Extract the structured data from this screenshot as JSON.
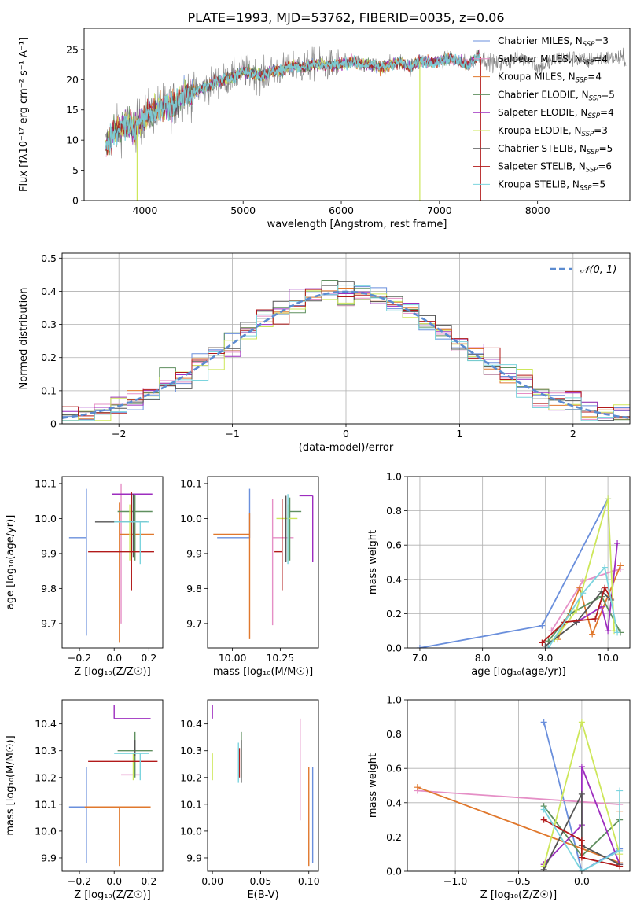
{
  "figure": {
    "title": "PLATE=1993, MJD=53762, FIBERID=0035, z=0.06"
  },
  "colors": {
    "grid": "#b0b0b0",
    "series": [
      "#6a8fdc",
      "#e58fc6",
      "#e0782d",
      "#5f8f5f",
      "#9d2dbf",
      "#cde75a",
      "#555555",
      "#b21a1a",
      "#7bd4de"
    ]
  },
  "chart_data": [
    {
      "id": "spectrum",
      "type": "line",
      "title": "PLATE=1993, MJD=53762, FIBERID=0035, z=0.06",
      "xlabel": "wavelength [Angstrom, rest frame]",
      "ylabel": "Flux [fλ10⁻¹⁷ erg cm⁻² s⁻¹ A⁻¹]",
      "xlim": [
        3380,
        8940
      ],
      "ylim": [
        0,
        28.5
      ],
      "xticks": [
        4000,
        5000,
        6000,
        7000,
        8000
      ],
      "yticks": [
        0,
        5,
        10,
        15,
        20,
        25
      ],
      "grid": false,
      "legend_position": "right",
      "legend": [
        {
          "label": "Chabrier MILES, N",
          "sub": "SSP",
          "suffix": "=3"
        },
        {
          "label": "Salpeter MILES, N",
          "sub": "SSP",
          "suffix": "=4"
        },
        {
          "label": "Kroupa MILES, N",
          "sub": "SSP",
          "suffix": "=4"
        },
        {
          "label": "Chabrier ELODIE, N",
          "sub": "SSP",
          "suffix": "=5"
        },
        {
          "label": "Salpeter ELODIE, N",
          "sub": "SSP",
          "suffix": "=4"
        },
        {
          "label": "Kroupa ELODIE, N",
          "sub": "SSP",
          "suffix": "=3"
        },
        {
          "label": "Chabrier STELIB, N",
          "sub": "SSP",
          "suffix": "=5"
        },
        {
          "label": "Salpeter STELIB, N",
          "sub": "SSP",
          "suffix": "=6"
        },
        {
          "label": "Kroupa STELIB, N",
          "sub": "SSP",
          "suffix": "=5"
        }
      ],
      "continuum": [
        [
          3600,
          9
        ],
        [
          3700,
          11.5
        ],
        [
          3800,
          12.5
        ],
        [
          3900,
          12
        ],
        [
          4000,
          14
        ],
        [
          4100,
          15
        ],
        [
          4200,
          15.5
        ],
        [
          4300,
          16
        ],
        [
          4400,
          17.5
        ],
        [
          4500,
          18
        ],
        [
          4600,
          18.5
        ],
        [
          4700,
          19.5
        ],
        [
          4800,
          20
        ],
        [
          4900,
          20.5
        ],
        [
          5000,
          21.5
        ],
        [
          5100,
          21
        ],
        [
          5200,
          20.5
        ],
        [
          5300,
          21.5
        ],
        [
          5400,
          21.5
        ],
        [
          5500,
          22.5
        ],
        [
          5600,
          22
        ],
        [
          5700,
          22.5
        ],
        [
          5800,
          22.5
        ],
        [
          5900,
          22.5
        ],
        [
          6000,
          22.5
        ],
        [
          6100,
          23
        ],
        [
          6200,
          22.5
        ],
        [
          6300,
          22.5
        ],
        [
          6400,
          22
        ],
        [
          6500,
          22.5
        ],
        [
          6600,
          23
        ],
        [
          6700,
          22
        ],
        [
          6800,
          23
        ],
        [
          6900,
          23
        ],
        [
          7000,
          23
        ],
        [
          7100,
          23.5
        ],
        [
          7200,
          23
        ],
        [
          7300,
          22.5
        ],
        [
          7400,
          24
        ],
        [
          7500,
          23
        ],
        [
          7600,
          22.5
        ],
        [
          7700,
          23
        ],
        [
          7800,
          23.5
        ],
        [
          7900,
          23.5
        ],
        [
          8000,
          22
        ],
        [
          8100,
          22.5
        ],
        [
          8200,
          23.5
        ],
        [
          8300,
          23.5
        ],
        [
          8400,
          23.5
        ],
        [
          8500,
          23
        ],
        [
          8600,
          23.5
        ],
        [
          8700,
          23.5
        ],
        [
          8800,
          23.5
        ],
        [
          8900,
          23.5
        ]
      ],
      "model_end": [
        7400,
        7420,
        7420,
        7420,
        7420,
        6800,
        7420,
        7420,
        7420
      ],
      "drop_lines": [
        {
          "x": 3920,
          "series": 5
        },
        {
          "x": 6800,
          "series": 5
        },
        {
          "x": 7420,
          "series": 7
        }
      ]
    },
    {
      "id": "residuals",
      "type": "histogram",
      "xlabel": "(data-model)/error",
      "ylabel": "Normed distribution",
      "xlim": [
        -2.5,
        2.5
      ],
      "ylim": [
        0,
        0.515
      ],
      "xticks": [
        -2,
        -1,
        0,
        1,
        2
      ],
      "yticks": [
        0.0,
        0.1,
        0.2,
        0.3,
        0.4,
        0.5
      ],
      "grid": true,
      "legend_position": "top-right",
      "reference_label": "𝒩(0, 1)",
      "bins": 35
    },
    {
      "id": "age-vs-Z",
      "type": "errorbar",
      "xlabel": "Z [log₁₀(Z/Z☉)]",
      "ylabel": "age  [log₁₀(age/yr)]",
      "xlim": [
        -0.3,
        0.28
      ],
      "ylim": [
        9.63,
        10.12
      ],
      "xticks": [
        -0.2,
        0.0,
        0.2
      ],
      "yticks": [
        9.7,
        9.8,
        9.9,
        10.0,
        10.1
      ],
      "grid": false,
      "points": [
        {
          "x": -0.16,
          "xerr": [
            0.1,
            0.0
          ],
          "y": 9.945,
          "yerr": [
            0.28,
            0.14
          ]
        },
        {
          "x": 0.04,
          "xerr": [
            0.0,
            0.0
          ],
          "y": 9.95,
          "yerr": [
            0.25,
            0.15
          ]
        },
        {
          "x": 0.03,
          "xerr": [
            0.0,
            0.2
          ],
          "y": 9.955,
          "yerr": [
            0.31,
            0.09
          ]
        },
        {
          "x": 0.12,
          "xerr": [
            0.1,
            0.1
          ],
          "y": 10.02,
          "yerr": [
            0.14,
            0.05
          ]
        },
        {
          "x": 0.1,
          "xerr": [
            0.11,
            0.12
          ],
          "y": 10.07,
          "yerr": [
            0.19,
            0.0
          ]
        },
        {
          "x": 0.09,
          "xerr": [
            0.0,
            0.0
          ],
          "y": 10.0,
          "yerr": [
            0.12,
            0.04
          ]
        },
        {
          "x": 0.11,
          "xerr": [
            0.22,
            0.08
          ],
          "y": 9.99,
          "yerr": [
            0.1,
            0.08
          ]
        },
        {
          "x": 0.1,
          "xerr": [
            0.25,
            0.13
          ],
          "y": 9.905,
          "yerr": [
            0.11,
            0.17
          ]
        },
        {
          "x": 0.15,
          "xerr": [
            0.15,
            0.05
          ],
          "y": 9.99,
          "yerr": [
            0.12,
            0.0
          ]
        }
      ]
    },
    {
      "id": "age-vs-mass",
      "type": "errorbar",
      "xlabel": "mass [log₁₀(M/M☉)]",
      "ylabel": "",
      "xlim": [
        9.87,
        10.45
      ],
      "ylim": [
        9.63,
        10.12
      ],
      "xticks": [
        10.0,
        10.25
      ],
      "yticks": [
        9.7,
        9.8,
        9.9,
        10.0,
        10.1
      ],
      "grid": false,
      "points": [
        {
          "x": 10.09,
          "xerr": [
            0.17,
            0.0
          ],
          "y": 9.945,
          "yerr": [
            0.0,
            0.14
          ]
        },
        {
          "x": 10.21,
          "xerr": [
            0.0,
            0.11
          ],
          "y": 9.945,
          "yerr": [
            0.25,
            0.11
          ]
        },
        {
          "x": 10.09,
          "xerr": [
            0.19,
            0.0
          ],
          "y": 9.955,
          "yerr": [
            0.3,
            0.06
          ]
        },
        {
          "x": 10.3,
          "xerr": [
            0.0,
            0.06
          ],
          "y": 10.02,
          "yerr": [
            0.14,
            0.04
          ]
        },
        {
          "x": 10.42,
          "xerr": [
            0.07,
            0.0
          ],
          "y": 10.065,
          "yerr": [
            0.19,
            0.0
          ]
        },
        {
          "x": 10.29,
          "xerr": [
            0.06,
            0.05
          ],
          "y": 10.0,
          "yerr": [
            0.12,
            0.04
          ]
        },
        {
          "x": 10.28,
          "xerr": [
            0.0,
            0.0
          ],
          "y": 9.995,
          "yerr": [
            0.12,
            0.07
          ]
        },
        {
          "x": 10.26,
          "xerr": [
            0.04,
            0.0
          ],
          "y": 9.905,
          "yerr": [
            0.11,
            0.15
          ]
        },
        {
          "x": 10.29,
          "xerr": [
            0.0,
            0.0
          ],
          "y": 9.99,
          "yerr": [
            0.12,
            0.08
          ]
        }
      ]
    },
    {
      "id": "weight-vs-age",
      "type": "line",
      "xlabel": "age  [log₁₀(age/yr)]",
      "ylabel": "mass weight",
      "xlim": [
        6.8,
        10.35
      ],
      "ylim": [
        0,
        1.0
      ],
      "xticks": [
        7,
        8,
        9,
        10
      ],
      "yticks": [
        0.0,
        0.2,
        0.4,
        0.6,
        0.8,
        1.0
      ],
      "grid": true,
      "series": [
        {
          "x": [
            7.0,
            8.95,
            10.0
          ],
          "y": [
            0.0,
            0.13,
            0.87
          ]
        },
        {
          "x": [
            9.1,
            9.6,
            10.1,
            10.2
          ],
          "y": [
            0.1,
            0.39,
            0.45,
            0.46
          ]
        },
        {
          "x": [
            9.2,
            9.55,
            9.75,
            10.2
          ],
          "y": [
            0.05,
            0.35,
            0.08,
            0.48
          ]
        },
        {
          "x": [
            9.05,
            9.4,
            9.9,
            10.2
          ],
          "y": [
            0.04,
            0.2,
            0.3,
            0.09
          ]
        },
        {
          "x": [
            9.5,
            9.9,
            10.0,
            10.15
          ],
          "y": [
            0.15,
            0.24,
            0.1,
            0.61
          ]
        },
        {
          "x": [
            9.15,
            9.5,
            10.0,
            10.1
          ],
          "y": [
            0.05,
            0.22,
            0.87,
            0.1
          ]
        },
        {
          "x": [
            9.0,
            9.5,
            9.9,
            10.05
          ],
          "y": [
            0.01,
            0.15,
            0.33,
            0.28
          ]
        },
        {
          "x": [
            8.95,
            9.3,
            9.8,
            9.95,
            10.05
          ],
          "y": [
            0.03,
            0.15,
            0.17,
            0.35,
            0.29
          ]
        },
        {
          "x": [
            9.05,
            9.6,
            9.95,
            10.15
          ],
          "y": [
            0.0,
            0.32,
            0.47,
            0.09
          ]
        }
      ]
    },
    {
      "id": "mass-vs-Z",
      "type": "errorbar",
      "xlabel": "Z [log₁₀(Z/Z☉)]",
      "ylabel": "mass [log₁₀(M/M☉)]",
      "xlim": [
        -0.3,
        0.28
      ],
      "ylim": [
        9.85,
        10.49
      ],
      "xticks": [
        -0.2,
        0.0,
        0.2
      ],
      "yticks": [
        9.9,
        10.0,
        10.1,
        10.2,
        10.3,
        10.4
      ],
      "grid": false,
      "points": [
        {
          "x": -0.16,
          "xerr": [
            0.1,
            0.0
          ],
          "y": 10.09,
          "yerr": [
            0.21,
            0.15
          ]
        },
        {
          "x": 0.04,
          "xerr": [
            0.0,
            0.11
          ],
          "y": 10.21,
          "yerr": [
            0.0,
            0.0
          ]
        },
        {
          "x": 0.03,
          "xerr": [
            0.2,
            0.18
          ],
          "y": 10.09,
          "yerr": [
            0.22,
            0.0
          ]
        },
        {
          "x": 0.12,
          "xerr": [
            0.1,
            0.1
          ],
          "y": 10.3,
          "yerr": [
            0.1,
            0.07
          ]
        },
        {
          "x": 0.0,
          "xerr": [
            0.0,
            0.21
          ],
          "y": 10.42,
          "yerr": [
            0.0,
            0.05
          ]
        },
        {
          "x": 0.11,
          "xerr": [
            0.0,
            0.0
          ],
          "y": 10.29,
          "yerr": [
            0.1,
            0.0
          ]
        },
        {
          "x": 0.12,
          "xerr": [
            0.0,
            0.0
          ],
          "y": 10.28,
          "yerr": [
            0.0,
            0.06
          ]
        },
        {
          "x": 0.1,
          "xerr": [
            0.25,
            0.15
          ],
          "y": 10.26,
          "yerr": [
            0.0,
            0.0
          ]
        },
        {
          "x": 0.15,
          "xerr": [
            0.15,
            0.05
          ],
          "y": 10.29,
          "yerr": [
            0.1,
            0.0
          ]
        }
      ]
    },
    {
      "id": "mass-vs-EBV",
      "type": "errorbar",
      "xlabel": "E(B-V)",
      "ylabel": "",
      "xlim": [
        -0.005,
        0.11
      ],
      "ylim": [
        9.85,
        10.49
      ],
      "xticks": [
        0.0,
        0.05,
        0.1
      ],
      "yticks": [
        9.9,
        10.0,
        10.1,
        10.2,
        10.3,
        10.4
      ],
      "grid": false,
      "points": [
        {
          "x": 0.104,
          "xerr": [
            0.0,
            0.0
          ],
          "y": 10.09,
          "yerr": [
            0.21,
            0.15
          ]
        },
        {
          "x": 0.091,
          "xerr": [
            0.0,
            0.0
          ],
          "y": 10.21,
          "yerr": [
            0.17,
            0.21
          ]
        },
        {
          "x": 0.1,
          "xerr": [
            0.0,
            0.0
          ],
          "y": 10.09,
          "yerr": [
            0.22,
            0.15
          ]
        },
        {
          "x": 0.03,
          "xerr": [
            0.0,
            0.0
          ],
          "y": 10.3,
          "yerr": [
            0.1,
            0.07
          ]
        },
        {
          "x": 0.0,
          "xerr": [
            0.0,
            0.0
          ],
          "y": 10.42,
          "yerr": [
            0.0,
            0.05
          ]
        },
        {
          "x": 0.0,
          "xerr": [
            0.0,
            0.0
          ],
          "y": 10.29,
          "yerr": [
            0.1,
            0.0
          ]
        },
        {
          "x": 0.03,
          "xerr": [
            0.0,
            0.0
          ],
          "y": 10.28,
          "yerr": [
            0.1,
            0.06
          ]
        },
        {
          "x": 0.028,
          "xerr": [
            0.0,
            0.0
          ],
          "y": 10.26,
          "yerr": [
            0.06,
            0.05
          ]
        },
        {
          "x": 0.027,
          "xerr": [
            0.0,
            0.0
          ],
          "y": 10.25,
          "yerr": [
            0.07,
            0.08
          ]
        }
      ]
    },
    {
      "id": "weight-vs-Z",
      "type": "line",
      "xlabel": "Z [log₁₀(Z/Z☉)]",
      "ylabel": "mass weight",
      "xlim": [
        -1.38,
        0.38
      ],
      "ylim": [
        0,
        1.0
      ],
      "xticks": [
        -1.0,
        -0.5,
        0.0
      ],
      "yticks": [
        0.0,
        0.2,
        0.4,
        0.6,
        0.8,
        1.0
      ],
      "grid": true,
      "series": [
        {
          "x": [
            -0.3,
            0.0,
            0.3
          ],
          "y": [
            0.87,
            0.0,
            0.13
          ]
        },
        {
          "x": [
            -1.3,
            0.3
          ],
          "y": [
            0.47,
            0.39
          ]
        },
        {
          "x": [
            -1.3,
            0.3,
            0.3
          ],
          "y": [
            0.49,
            0.05,
            0.35
          ]
        },
        {
          "x": [
            -0.3,
            0.0,
            0.3
          ],
          "y": [
            0.38,
            0.09,
            0.3
          ]
        },
        {
          "x": [
            -0.3,
            0.0,
            0.0,
            0.3
          ],
          "y": [
            0.04,
            0.27,
            0.61,
            0.04
          ]
        },
        {
          "x": [
            -0.3,
            0.0,
            0.3
          ],
          "y": [
            0.03,
            0.87,
            0.1
          ]
        },
        {
          "x": [
            -0.3,
            0.0,
            0.0,
            0.3
          ],
          "y": [
            0.01,
            0.45,
            0.15,
            0.04
          ]
        },
        {
          "x": [
            -0.3,
            0.0,
            0.0,
            0.3
          ],
          "y": [
            0.3,
            0.18,
            0.08,
            0.03
          ]
        },
        {
          "x": [
            -0.3,
            0.0,
            0.3,
            0.3
          ],
          "y": [
            0.36,
            0.0,
            0.12,
            0.47
          ]
        }
      ]
    }
  ]
}
